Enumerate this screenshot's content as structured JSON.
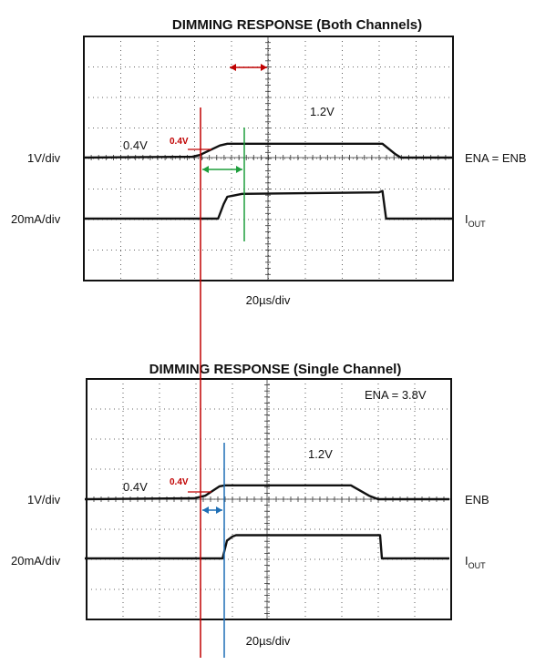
{
  "chart_data": [
    {
      "type": "line",
      "title": "DIMMING RESPONSE (Both Channels)",
      "x_scale_label": "20µs/div",
      "ch1_scale": "1V/div",
      "ch1_name": "ENA = ENB",
      "ch2_scale": "20mA/div",
      "ch2_name_main": "I",
      "ch2_name_sub": "OUT",
      "annotations": {
        "low_level": "0.4V",
        "high_level": "1.2V",
        "threshold": "0.4V"
      },
      "x_divisions": 10,
      "series": [
        {
          "name": "ENA = ENB",
          "x": [
            -5,
            -2.05,
            -1.85,
            -1.3,
            -1.1,
            3.1,
            3.45,
            3.6,
            5
          ],
          "y": [
            0.4,
            0.45,
            0.55,
            1.1,
            1.2,
            1.2,
            0.6,
            0.4,
            0.4
          ]
        },
        {
          "name": "IOUT",
          "x": [
            -5,
            -1.35,
            -1.2,
            -1.1,
            -0.7,
            3.0,
            3.1,
            3.2,
            5
          ],
          "y": [
            0,
            0,
            0.5,
            0.75,
            0.85,
            0.9,
            0.95,
            0,
            0
          ]
        }
      ]
    },
    {
      "type": "line",
      "title": "DIMMING RESPONSE (Single Channel)",
      "x_scale_label": "20µs/div",
      "ch1_scale": "1V/div",
      "ch1_name": "ENB",
      "ch2_scale": "20mA/div",
      "ch2_name_main": "I",
      "ch2_name_sub": "OUT",
      "note": "ENA = 3.8V",
      "annotations": {
        "low_level": "0.4V",
        "high_level": "1.2V",
        "threshold": "0.4V"
      },
      "x_divisions": 10,
      "series": [
        {
          "name": "ENB",
          "x": [
            -5,
            -2.0,
            -1.7,
            -1.3,
            -1.15,
            2.3,
            2.8,
            3.05,
            5
          ],
          "y": [
            0.4,
            0.45,
            0.6,
            1.15,
            1.2,
            1.2,
            0.6,
            0.4,
            0.4
          ]
        },
        {
          "name": "IOUT",
          "x": [
            -5,
            -1.22,
            -1.1,
            -0.95,
            -0.85,
            3.1,
            3.15,
            5
          ],
          "y": [
            0,
            0,
            0.65,
            0.8,
            0.85,
            0.85,
            0,
            0
          ]
        }
      ]
    }
  ]
}
